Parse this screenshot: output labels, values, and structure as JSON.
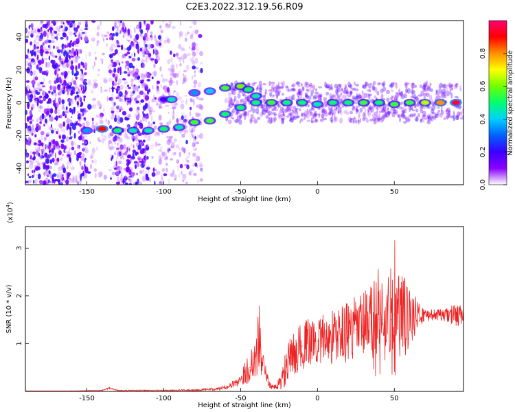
{
  "figure_title": "C2E3.2022.312.19.56.R09",
  "chart_data": [
    {
      "type": "heatmap",
      "title": "C2E3.2022.312.19.56.R09",
      "xlabel": "Height of straight line (km)",
      "ylabel": "Frequency (Hz)",
      "xlim": [
        -190,
        95
      ],
      "ylim": [
        -50,
        50
      ],
      "xticks": [
        -150,
        -100,
        -50,
        0,
        50
      ],
      "yticks": [
        -40,
        -20,
        0,
        20,
        40
      ],
      "xtick_labels": [
        "-150",
        "-100",
        "-50",
        "0",
        "50"
      ],
      "ytick_labels": [
        "-40",
        "-20",
        "0",
        "20",
        "40"
      ],
      "colorbar": {
        "label": "Normalized spectral amplitude",
        "range": [
          0,
          1
        ],
        "ticks": [
          0.0,
          0.2,
          0.4,
          0.6,
          0.8
        ],
        "tick_labels": [
          "0.0",
          "0.2",
          "0.4",
          "0.6",
          "0.8"
        ],
        "colors": [
          "#ffffff",
          "#8a00ff",
          "#3a00ff",
          "#0060ff",
          "#00d0ff",
          "#00ff70",
          "#70ff00",
          "#ffff00",
          "#ff9000",
          "#ff0000",
          "#ff0070"
        ]
      },
      "main_trace": [
        {
          "x": -150,
          "y": -17,
          "a": 0.35
        },
        {
          "x": -140,
          "y": -16,
          "a": 0.9
        },
        {
          "x": -130,
          "y": -17,
          "a": 0.5
        },
        {
          "x": -120,
          "y": -17,
          "a": 0.45
        },
        {
          "x": -110,
          "y": -17,
          "a": 0.45
        },
        {
          "x": -100,
          "y": -16,
          "a": 0.5
        },
        {
          "x": -90,
          "y": -15,
          "a": 0.45
        },
        {
          "x": -80,
          "y": -12,
          "a": 0.55
        },
        {
          "x": -70,
          "y": -11,
          "a": 0.55
        },
        {
          "x": -60,
          "y": -7,
          "a": 0.5
        },
        {
          "x": -50,
          "y": -3,
          "a": 0.5
        },
        {
          "x": -40,
          "y": 0,
          "a": 0.5
        },
        {
          "x": -30,
          "y": 0,
          "a": 0.55
        },
        {
          "x": -20,
          "y": 0,
          "a": 0.5
        },
        {
          "x": -10,
          "y": 0,
          "a": 0.5
        },
        {
          "x": 0,
          "y": -1,
          "a": 0.45
        },
        {
          "x": 10,
          "y": 0,
          "a": 0.5
        },
        {
          "x": 20,
          "y": 0,
          "a": 0.5
        },
        {
          "x": 30,
          "y": 0,
          "a": 0.55
        },
        {
          "x": 40,
          "y": 0,
          "a": 0.5
        },
        {
          "x": 50,
          "y": -1,
          "a": 0.55
        },
        {
          "x": 60,
          "y": 0,
          "a": 0.55
        },
        {
          "x": 70,
          "y": 0,
          "a": 0.65
        },
        {
          "x": 80,
          "y": 0,
          "a": 0.8
        },
        {
          "x": 90,
          "y": 0,
          "a": 0.95
        }
      ],
      "secondary_trace": [
        {
          "x": -100,
          "y": 2,
          "a": 0.2
        },
        {
          "x": -95,
          "y": 2,
          "a": 0.45
        },
        {
          "x": -80,
          "y": 6,
          "a": 0.35
        },
        {
          "x": -70,
          "y": 7,
          "a": 0.4
        },
        {
          "x": -60,
          "y": 9,
          "a": 0.55
        },
        {
          "x": -50,
          "y": 10,
          "a": 0.6
        },
        {
          "x": -45,
          "y": 8,
          "a": 0.5
        },
        {
          "x": -40,
          "y": 4,
          "a": 0.45
        }
      ]
    },
    {
      "type": "line",
      "xlabel": "Height of straight line (km)",
      "ylabel": "SNR (10 * v/v)",
      "y_scale_label": "(x10",
      "y_scale_exponent": "4",
      "y_scale_suffix": ")",
      "xlim": [
        -190,
        95
      ],
      "ylim": [
        0,
        3.45
      ],
      "xticks": [
        -150,
        -100,
        -50,
        0,
        50
      ],
      "yticks": [
        1,
        2,
        3
      ],
      "xtick_labels": [
        "-150",
        "-100",
        "-50",
        "0",
        "50"
      ],
      "ytick_labels": [
        "1",
        "2",
        "3"
      ],
      "color": "#ee2222",
      "series": [
        {
          "name": "SNR",
          "x": [
            -190,
            -160,
            -140,
            -135,
            -130,
            -100,
            -80,
            -65,
            -58,
            -52,
            -48,
            -44,
            -40,
            -38,
            -36,
            -34,
            -32,
            -30,
            -28,
            -26,
            -24,
            -22,
            -20,
            -18,
            -15,
            -10,
            -5,
            0,
            5,
            10,
            15,
            20,
            25,
            30,
            35,
            38,
            40,
            42,
            45,
            48,
            50,
            52,
            55,
            60,
            65,
            70,
            75,
            80,
            85,
            90,
            95
          ],
          "y": [
            0.01,
            0.01,
            0.02,
            0.07,
            0.02,
            0.02,
            0.03,
            0.05,
            0.1,
            0.2,
            0.35,
            0.5,
            0.8,
            1.1,
            0.7,
            0.4,
            0.2,
            0.1,
            0.08,
            0.12,
            0.2,
            0.35,
            0.5,
            0.7,
            0.8,
            0.95,
            1.05,
            1.05,
            1.1,
            1.15,
            1.2,
            1.25,
            1.3,
            1.35,
            1.4,
            1.45,
            1.5,
            1.5,
            1.45,
            1.5,
            1.6,
            1.55,
            1.5,
            1.6,
            1.6,
            1.6,
            1.6,
            1.6,
            1.6,
            1.6,
            1.6
          ],
          "amplitude": [
            0.0,
            0.0,
            0.01,
            0.02,
            0.01,
            0.01,
            0.02,
            0.03,
            0.05,
            0.1,
            0.2,
            0.35,
            0.5,
            0.8,
            0.4,
            0.2,
            0.1,
            0.05,
            0.05,
            0.1,
            0.2,
            0.35,
            0.4,
            0.4,
            0.45,
            0.5,
            0.5,
            0.5,
            0.55,
            0.6,
            0.6,
            0.65,
            0.7,
            0.75,
            0.9,
            1.2,
            1.3,
            1.1,
            0.9,
            1.2,
            1.7,
            1.4,
            1.0,
            0.7,
            0.3,
            0.15,
            0.12,
            0.12,
            0.15,
            0.25,
            0.2
          ]
        }
      ]
    }
  ]
}
